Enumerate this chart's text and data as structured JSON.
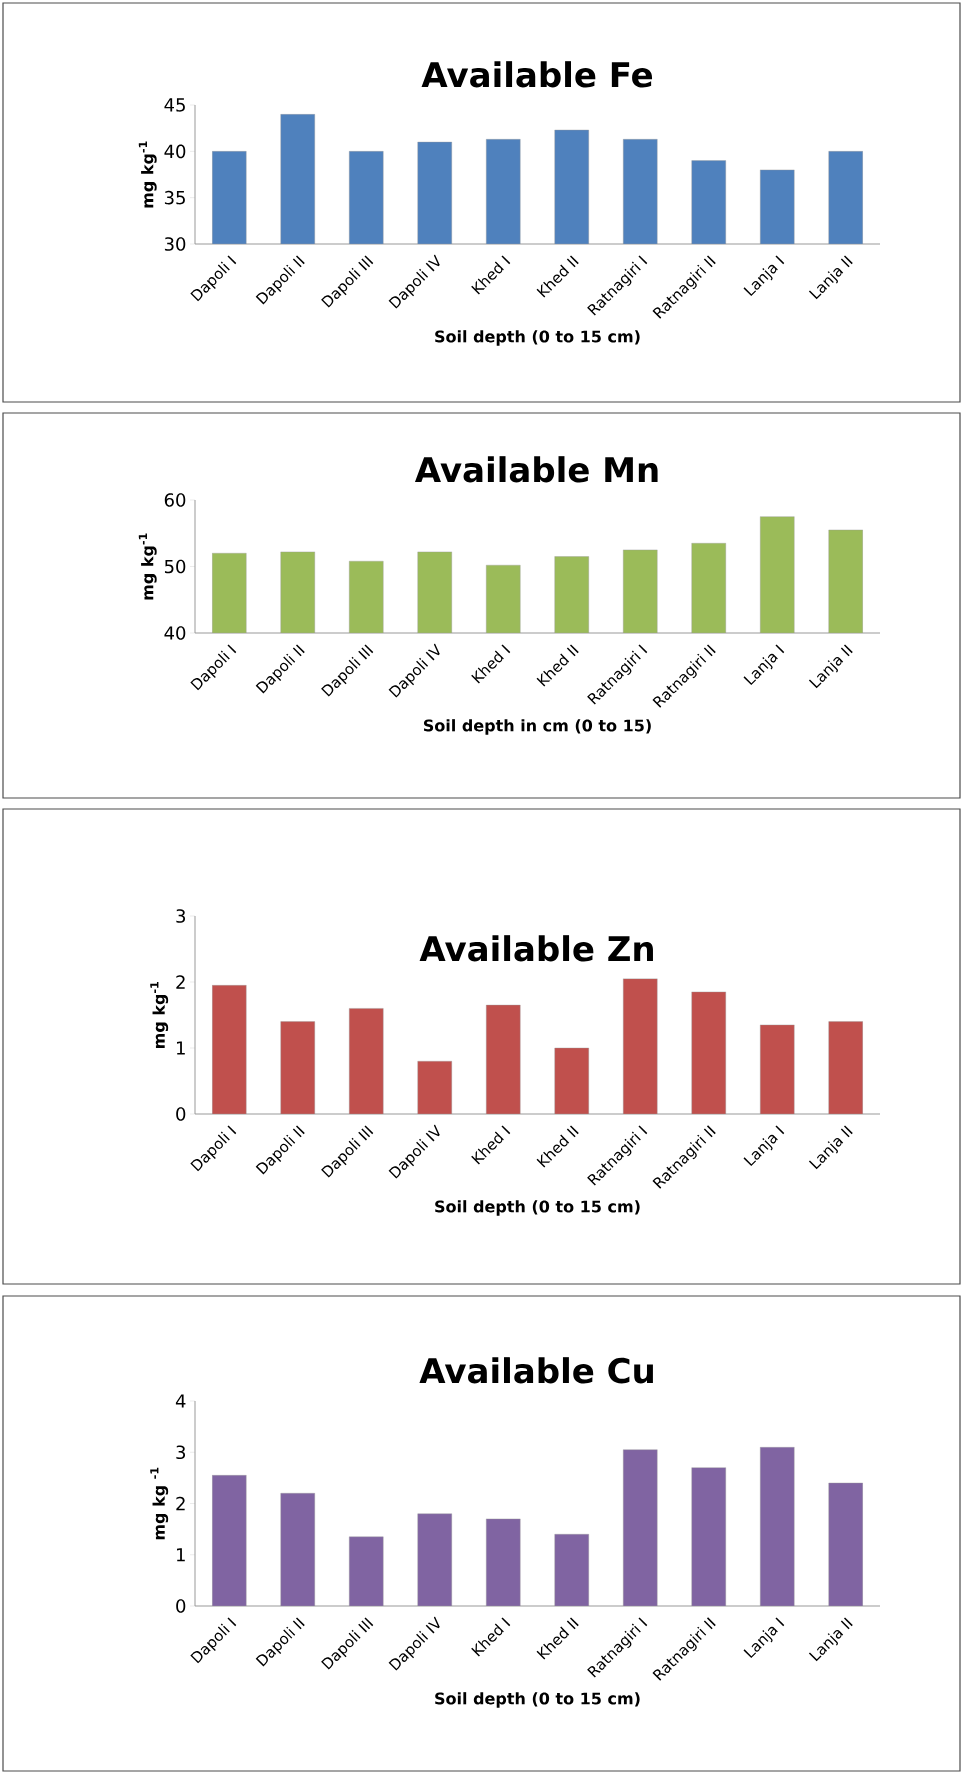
{
  "chart_data": [
    {
      "type": "bar",
      "title": "Available Fe",
      "xlabel": "Soil depth (0 to 15 cm)",
      "ylabel": "mg kg$^{-1}$",
      "categories": [
        "Dapoli I",
        "Dapoli II",
        "Dapoli III",
        "Dapoli IV",
        "Khed I",
        "Khed II",
        "Ratnagiri I",
        "Ratnagiri II",
        "Lanja I",
        "Lanja II"
      ],
      "values": [
        40,
        44,
        40,
        41,
        41.3,
        42.3,
        41.3,
        39,
        38,
        40
      ],
      "color": "#4f81bd",
      "ylim": [
        30,
        45
      ],
      "yticks": [
        30,
        35,
        40,
        45
      ]
    },
    {
      "type": "bar",
      "title": "Available Mn",
      "xlabel": "Soil depth in cm (0 to 15)",
      "ylabel": "mg kg$^{-1}$",
      "categories": [
        "Dapoli I",
        "Dapoli II",
        "Dapoli III",
        "Dapoli IV",
        "Khed I",
        "Khed II",
        "Ratnagiri I",
        "Ratnagiri II",
        "Lanja I",
        "Lanja II"
      ],
      "values": [
        52,
        52.2,
        50.8,
        52.2,
        50.2,
        51.5,
        52.5,
        53.5,
        57.5,
        55.5
      ],
      "color": "#9bbb59",
      "ylim": [
        40,
        60
      ],
      "yticks": [
        40,
        50,
        60
      ]
    },
    {
      "type": "bar",
      "title": "Available Zn",
      "xlabel": "Soil depth (0 to 15 cm)",
      "ylabel": "mg kg$^{-1}$",
      "categories": [
        "Dapoli I",
        "Dapoli II",
        "Dapoli III",
        "Dapoli IV",
        "Khed I",
        "Khed II",
        "Ratnagiri I",
        "Ratnagiri II",
        "Lanja I",
        "Lanja II"
      ],
      "values": [
        1.95,
        1.4,
        1.6,
        0.8,
        1.65,
        1.0,
        2.05,
        1.85,
        1.35,
        1.4
      ],
      "color": "#c0504d",
      "ylim": [
        0,
        3
      ],
      "yticks": [
        0,
        1,
        2,
        3
      ]
    },
    {
      "type": "bar",
      "title": "Available Cu",
      "xlabel": "Soil depth  (0 to 15 cm)",
      "ylabel": "mg kg $^{-1}$",
      "categories": [
        "Dapoli I",
        "Dapoli II",
        "Dapoli III",
        "Dapoli IV",
        "Khed I",
        "Khed II",
        "Ratnagiri I",
        "Ratnagiri II",
        "Lanja I",
        "Lanja II"
      ],
      "values": [
        2.55,
        2.2,
        1.35,
        1.8,
        1.7,
        1.4,
        3.05,
        2.7,
        3.1,
        2.4
      ],
      "color": "#8064a2",
      "ylim": [
        0,
        4
      ],
      "yticks": [
        0,
        1,
        2,
        3,
        4
      ]
    }
  ]
}
